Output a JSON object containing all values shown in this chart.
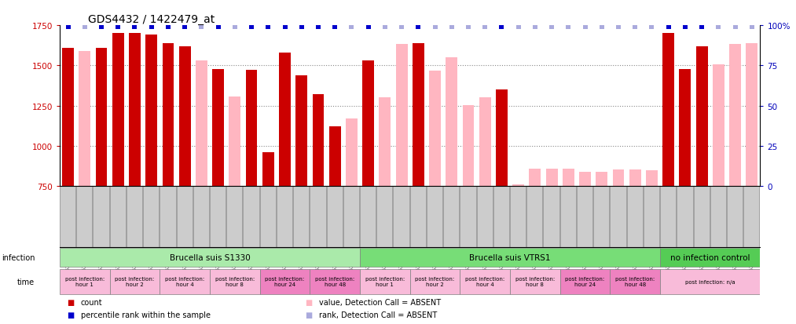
{
  "title": "GDS4432 / 1422479_at",
  "samples": [
    "GSM528195",
    "GSM528196",
    "GSM528197",
    "GSM528198",
    "GSM528199",
    "GSM528200",
    "GSM528203",
    "GSM528204",
    "GSM528205",
    "GSM528206",
    "GSM528207",
    "GSM528208",
    "GSM528209",
    "GSM528210",
    "GSM528211",
    "GSM528212",
    "GSM528213",
    "GSM528214",
    "GSM528218",
    "GSM528219",
    "GSM528220",
    "GSM528222",
    "GSM528223",
    "GSM528224",
    "GSM528225",
    "GSM528226",
    "GSM528227",
    "GSM528228",
    "GSM528229",
    "GSM528230",
    "GSM528232",
    "GSM528233",
    "GSM528234",
    "GSM528235",
    "GSM528236",
    "GSM528237",
    "GSM528192",
    "GSM528193",
    "GSM528194",
    "GSM528215",
    "GSM528216",
    "GSM528217"
  ],
  "values": [
    1610,
    1590,
    1610,
    1700,
    1700,
    1690,
    1640,
    1620,
    1530,
    1480,
    1305,
    1475,
    960,
    1580,
    1440,
    1320,
    1120,
    1170,
    1530,
    1300,
    1635,
    1640,
    1470,
    1550,
    1255,
    1300,
    1350,
    760,
    860,
    860,
    860,
    840,
    840,
    855,
    855,
    850,
    1700,
    1480,
    1620,
    1505,
    1635,
    1640
  ],
  "detection": [
    "P",
    "A",
    "P",
    "P",
    "P",
    "P",
    "P",
    "P",
    "A",
    "P",
    "A",
    "P",
    "P",
    "P",
    "P",
    "P",
    "P",
    "A",
    "P",
    "A",
    "A",
    "P",
    "A",
    "A",
    "A",
    "A",
    "P",
    "A",
    "A",
    "A",
    "A",
    "A",
    "A",
    "A",
    "A",
    "A",
    "P",
    "P",
    "P",
    "A",
    "A",
    "A"
  ],
  "rank_absent": [
    false,
    true,
    false,
    false,
    false,
    false,
    false,
    false,
    true,
    false,
    true,
    false,
    false,
    false,
    false,
    false,
    false,
    true,
    false,
    true,
    true,
    false,
    true,
    true,
    true,
    true,
    false,
    true,
    true,
    true,
    true,
    true,
    true,
    true,
    true,
    true,
    false,
    false,
    false,
    true,
    true,
    true
  ],
  "ylim": [
    750,
    1750
  ],
  "yticks": [
    750,
    1000,
    1250,
    1500,
    1750
  ],
  "right_yticks": [
    0,
    25,
    50,
    75,
    100
  ],
  "infection_groups": [
    {
      "label": "Brucella suis S1330",
      "start": 0,
      "end": 18,
      "color": "#AAEAAA"
    },
    {
      "label": "Brucella suis VTRS1",
      "start": 18,
      "end": 36,
      "color": "#77DD77"
    },
    {
      "label": "no infection control",
      "start": 36,
      "end": 42,
      "color": "#55CC55"
    }
  ],
  "time_groups": [
    {
      "label": "post infection:\nhour 1",
      "start": 0,
      "end": 3,
      "color": "#F8BBD9"
    },
    {
      "label": "post infection:\nhour 2",
      "start": 3,
      "end": 6,
      "color": "#F8BBD9"
    },
    {
      "label": "post infection:\nhour 4",
      "start": 6,
      "end": 9,
      "color": "#F8BBD9"
    },
    {
      "label": "post infection:\nhour 8",
      "start": 9,
      "end": 12,
      "color": "#F8BBD9"
    },
    {
      "label": "post infection:\nhour 24",
      "start": 12,
      "end": 15,
      "color": "#EE82C0"
    },
    {
      "label": "post infection:\nhour 48",
      "start": 15,
      "end": 18,
      "color": "#EE82C0"
    },
    {
      "label": "post infection:\nhour 1",
      "start": 18,
      "end": 21,
      "color": "#F8BBD9"
    },
    {
      "label": "post infection:\nhour 2",
      "start": 21,
      "end": 24,
      "color": "#F8BBD9"
    },
    {
      "label": "post infection:\nhour 4",
      "start": 24,
      "end": 27,
      "color": "#F8BBD9"
    },
    {
      "label": "post infection:\nhour 8",
      "start": 27,
      "end": 30,
      "color": "#F8BBD9"
    },
    {
      "label": "post infection:\nhour 24",
      "start": 30,
      "end": 33,
      "color": "#EE82C0"
    },
    {
      "label": "post infection:\nhour 48",
      "start": 33,
      "end": 36,
      "color": "#EE82C0"
    },
    {
      "label": "post infection: n/a",
      "start": 36,
      "end": 42,
      "color": "#F8BBD9"
    }
  ],
  "bar_color_present": "#CC0000",
  "bar_color_absent": "#FFB6C1",
  "rank_color_present": "#0000CC",
  "rank_color_absent": "#AAAADD",
  "background_color": "#FFFFFF",
  "tick_label_bg": "#CCCCCC",
  "xlabel_color": "#CC0000",
  "ylabel_right_color": "#0000BB",
  "grid_color": "#888888"
}
